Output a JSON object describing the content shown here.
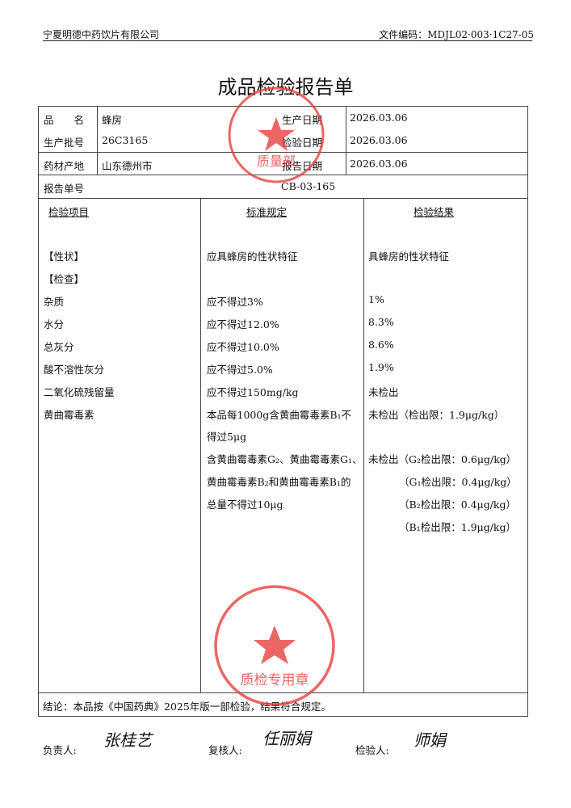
{
  "header": {
    "company": "宁夏明德中药饮片有限公司",
    "doc_code": "文件编码：MDJL02·003·1C27-05"
  },
  "title": "成品检验报告单",
  "info": {
    "name_label": "品　　名",
    "name": "蜂房",
    "batch_label": "生产批号",
    "batch": "26C3165",
    "origin_label": "药材产地",
    "origin": "山东德州市",
    "prod_date_label": "生产日期",
    "prod_date": "2026.03.06",
    "test_date_label": "检验日期",
    "test_date": "2026.03.06",
    "report_date_label": "报告日期",
    "report_date": "2026.03.06",
    "report_no_label": "报告单号",
    "report_no": "CB-03-165"
  },
  "columns": [
    "检验项目",
    "标准规定",
    "检验结果"
  ],
  "rows": [
    {
      "item": "【性状】",
      "standard": "应具蜂房的性状特征",
      "result": "具蜂房的性状特征"
    },
    {
      "item": "【检查】",
      "standard": "",
      "result": ""
    },
    {
      "item": "杂质",
      "standard": "应不得过3%",
      "result": "1%"
    },
    {
      "item": "水分",
      "standard": "应不得过12.0%",
      "result": "8.3%"
    },
    {
      "item": "总灰分",
      "standard": "应不得过10.0%",
      "result": "8.6%"
    },
    {
      "item": "酸不溶性灰分",
      "standard": "应不得过5.0%",
      "result": "1.9%"
    },
    {
      "item": "二氧化硫残留量",
      "standard": "应不得过150mg/kg",
      "result": "未检出"
    },
    {
      "item": "黄曲霉毒素",
      "standard": "本品每1000g含黄曲霉毒素B₁不",
      "result": "未检出（检出限：1.9μg/kg）"
    }
  ],
  "aflatoxin_extra": {
    "standard_lines": [
      "得过5μg",
      "含黄曲霉毒素G₂、黄曲霉毒素G₁、",
      "黄曲霉毒素B₂和黄曲霉毒素B₁的",
      "总量不得过10μg"
    ],
    "result_lines": [
      "未检出（G₂检出限：0.6μg/kg）",
      "（G₁检出限：0.4μg/kg）",
      "（B₂检出限：0.4μg/kg）",
      "（B₁检出限：1.9μg/kg）"
    ]
  },
  "conclusion": "结论：本品按《中国药典》2025年版一部检验，结果符合规定。",
  "signatures": {
    "responsible_label": "负责人:",
    "reviewer_label": "复核人:",
    "inspector_label": "检验人:",
    "responsible": "张桂艺",
    "reviewer": "任丽娟",
    "inspector": "师娟"
  },
  "stamps": [
    {
      "text": "宁夏明德中药饮片有限公司",
      "center": "质量部"
    },
    {
      "text": "宁夏明德中药饮片有限公司",
      "center": "质检专用章"
    }
  ],
  "colors": {
    "stamp": "#e8403f"
  }
}
